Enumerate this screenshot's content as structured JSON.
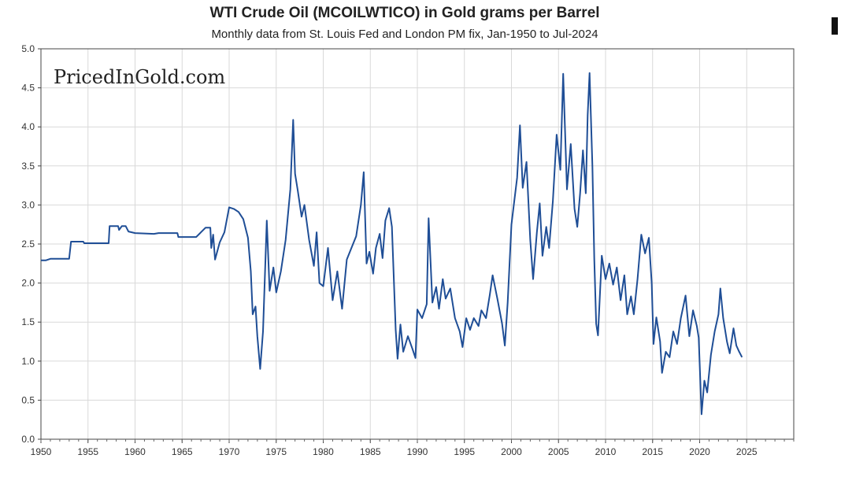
{
  "chart_data": {
    "type": "line",
    "title": "WTI Crude Oil (MCOILWTICO) in Gold grams per Barrel",
    "subtitle": "Monthly data from St. Louis Fed and London PM fix, Jan-1950 to Jul-2024",
    "watermark": "PricedInGold.com",
    "xlabel": "",
    "ylabel": "",
    "xlim": [
      1950,
      2030
    ],
    "ylim": [
      0,
      5
    ],
    "grid": true,
    "line_color": "#1f4e96",
    "x_ticks": [
      "1950",
      "1955",
      "1960",
      "1965",
      "1970",
      "1975",
      "1980",
      "1985",
      "1990",
      "1995",
      "2000",
      "2005",
      "2010",
      "2015",
      "2020",
      "2025"
    ],
    "y_ticks": [
      "0.0",
      "0.5",
      "1.0",
      "1.5",
      "2.0",
      "2.5",
      "3.0",
      "3.5",
      "4.0",
      "4.5",
      "5.0"
    ],
    "series": [
      {
        "values": [
          [
            1950.0,
            2.29
          ],
          [
            1950.5,
            2.29
          ],
          [
            1951.0,
            2.31
          ],
          [
            1953.0,
            2.31
          ],
          [
            1953.2,
            2.53
          ],
          [
            1954.5,
            2.53
          ],
          [
            1954.6,
            2.51
          ],
          [
            1957.2,
            2.51
          ],
          [
            1957.3,
            2.73
          ],
          [
            1958.2,
            2.73
          ],
          [
            1958.3,
            2.68
          ],
          [
            1958.6,
            2.73
          ],
          [
            1959.0,
            2.73
          ],
          [
            1959.3,
            2.66
          ],
          [
            1960.0,
            2.64
          ],
          [
            1962.0,
            2.63
          ],
          [
            1962.5,
            2.64
          ],
          [
            1964.5,
            2.64
          ],
          [
            1964.6,
            2.59
          ],
          [
            1966.5,
            2.59
          ],
          [
            1967.0,
            2.65
          ],
          [
            1967.5,
            2.71
          ],
          [
            1968.0,
            2.71
          ],
          [
            1968.1,
            2.45
          ],
          [
            1968.3,
            2.62
          ],
          [
            1968.5,
            2.3
          ],
          [
            1969.0,
            2.52
          ],
          [
            1969.5,
            2.65
          ],
          [
            1970.0,
            2.97
          ],
          [
            1970.5,
            2.95
          ],
          [
            1971.0,
            2.91
          ],
          [
            1971.5,
            2.82
          ],
          [
            1972.0,
            2.58
          ],
          [
            1972.3,
            2.15
          ],
          [
            1972.5,
            1.6
          ],
          [
            1972.8,
            1.7
          ],
          [
            1973.0,
            1.32
          ],
          [
            1973.3,
            0.9
          ],
          [
            1973.6,
            1.38
          ],
          [
            1974.0,
            2.8
          ],
          [
            1974.3,
            1.9
          ],
          [
            1974.7,
            2.2
          ],
          [
            1975.0,
            1.88
          ],
          [
            1975.5,
            2.15
          ],
          [
            1976.0,
            2.55
          ],
          [
            1976.5,
            3.2
          ],
          [
            1976.8,
            4.09
          ],
          [
            1977.0,
            3.4
          ],
          [
            1977.3,
            3.18
          ],
          [
            1977.7,
            2.85
          ],
          [
            1978.0,
            3.0
          ],
          [
            1978.5,
            2.55
          ],
          [
            1979.0,
            2.22
          ],
          [
            1979.3,
            2.65
          ],
          [
            1979.6,
            2.0
          ],
          [
            1980.0,
            1.96
          ],
          [
            1980.5,
            2.45
          ],
          [
            1981.0,
            1.78
          ],
          [
            1981.5,
            2.15
          ],
          [
            1982.0,
            1.67
          ],
          [
            1982.5,
            2.3
          ],
          [
            1983.0,
            2.45
          ],
          [
            1983.5,
            2.6
          ],
          [
            1984.0,
            3.0
          ],
          [
            1984.3,
            3.42
          ],
          [
            1984.6,
            2.25
          ],
          [
            1984.9,
            2.4
          ],
          [
            1985.3,
            2.12
          ],
          [
            1985.6,
            2.45
          ],
          [
            1986.0,
            2.63
          ],
          [
            1986.3,
            2.32
          ],
          [
            1986.6,
            2.8
          ],
          [
            1987.0,
            2.96
          ],
          [
            1987.3,
            2.72
          ],
          [
            1987.7,
            1.4
          ],
          [
            1987.9,
            1.03
          ],
          [
            1988.2,
            1.47
          ],
          [
            1988.5,
            1.12
          ],
          [
            1989.0,
            1.32
          ],
          [
            1989.5,
            1.15
          ],
          [
            1989.8,
            1.04
          ],
          [
            1990.0,
            1.66
          ],
          [
            1990.5,
            1.55
          ],
          [
            1991.0,
            1.73
          ],
          [
            1991.2,
            2.83
          ],
          [
            1991.6,
            1.75
          ],
          [
            1992.0,
            1.95
          ],
          [
            1992.3,
            1.67
          ],
          [
            1992.7,
            2.05
          ],
          [
            1993.0,
            1.8
          ],
          [
            1993.5,
            1.93
          ],
          [
            1994.0,
            1.55
          ],
          [
            1994.5,
            1.38
          ],
          [
            1994.8,
            1.18
          ],
          [
            1995.2,
            1.55
          ],
          [
            1995.6,
            1.4
          ],
          [
            1996.0,
            1.55
          ],
          [
            1996.5,
            1.45
          ],
          [
            1996.8,
            1.65
          ],
          [
            1997.3,
            1.55
          ],
          [
            1997.7,
            1.85
          ],
          [
            1998.0,
            2.1
          ],
          [
            1998.5,
            1.8
          ],
          [
            1999.0,
            1.48
          ],
          [
            1999.3,
            1.2
          ],
          [
            1999.6,
            1.75
          ],
          [
            2000.0,
            2.75
          ],
          [
            2000.3,
            3.05
          ],
          [
            2000.6,
            3.35
          ],
          [
            2000.9,
            4.02
          ],
          [
            2001.2,
            3.22
          ],
          [
            2001.6,
            3.55
          ],
          [
            2002.0,
            2.55
          ],
          [
            2002.3,
            2.05
          ],
          [
            2002.7,
            2.65
          ],
          [
            2003.0,
            3.02
          ],
          [
            2003.3,
            2.35
          ],
          [
            2003.7,
            2.72
          ],
          [
            2004.0,
            2.45
          ],
          [
            2004.4,
            3.05
          ],
          [
            2004.8,
            3.9
          ],
          [
            2005.2,
            3.45
          ],
          [
            2005.5,
            4.68
          ],
          [
            2005.9,
            3.2
          ],
          [
            2006.3,
            3.78
          ],
          [
            2006.7,
            2.95
          ],
          [
            2007.0,
            2.72
          ],
          [
            2007.3,
            3.15
          ],
          [
            2007.6,
            3.7
          ],
          [
            2007.9,
            3.15
          ],
          [
            2008.1,
            4.15
          ],
          [
            2008.3,
            4.69
          ],
          [
            2008.6,
            3.5
          ],
          [
            2008.8,
            2.3
          ],
          [
            2009.0,
            1.48
          ],
          [
            2009.2,
            1.33
          ],
          [
            2009.6,
            2.35
          ],
          [
            2010.0,
            2.05
          ],
          [
            2010.4,
            2.25
          ],
          [
            2010.8,
            1.98
          ],
          [
            2011.2,
            2.2
          ],
          [
            2011.6,
            1.78
          ],
          [
            2012.0,
            2.1
          ],
          [
            2012.3,
            1.6
          ],
          [
            2012.7,
            1.83
          ],
          [
            2013.0,
            1.6
          ],
          [
            2013.4,
            2.05
          ],
          [
            2013.8,
            2.62
          ],
          [
            2014.2,
            2.38
          ],
          [
            2014.6,
            2.58
          ],
          [
            2014.9,
            2.0
          ],
          [
            2015.1,
            1.22
          ],
          [
            2015.4,
            1.56
          ],
          [
            2015.8,
            1.25
          ],
          [
            2016.0,
            0.85
          ],
          [
            2016.4,
            1.12
          ],
          [
            2016.8,
            1.05
          ],
          [
            2017.2,
            1.38
          ],
          [
            2017.6,
            1.22
          ],
          [
            2018.0,
            1.55
          ],
          [
            2018.5,
            1.84
          ],
          [
            2018.9,
            1.32
          ],
          [
            2019.3,
            1.65
          ],
          [
            2019.7,
            1.45
          ],
          [
            2019.9,
            1.3
          ],
          [
            2020.2,
            0.32
          ],
          [
            2020.5,
            0.75
          ],
          [
            2020.8,
            0.6
          ],
          [
            2021.2,
            1.08
          ],
          [
            2021.6,
            1.38
          ],
          [
            2022.0,
            1.6
          ],
          [
            2022.2,
            1.93
          ],
          [
            2022.5,
            1.55
          ],
          [
            2022.9,
            1.25
          ],
          [
            2023.2,
            1.1
          ],
          [
            2023.6,
            1.42
          ],
          [
            2023.9,
            1.2
          ],
          [
            2024.2,
            1.12
          ],
          [
            2024.5,
            1.05
          ]
        ]
      }
    ]
  }
}
